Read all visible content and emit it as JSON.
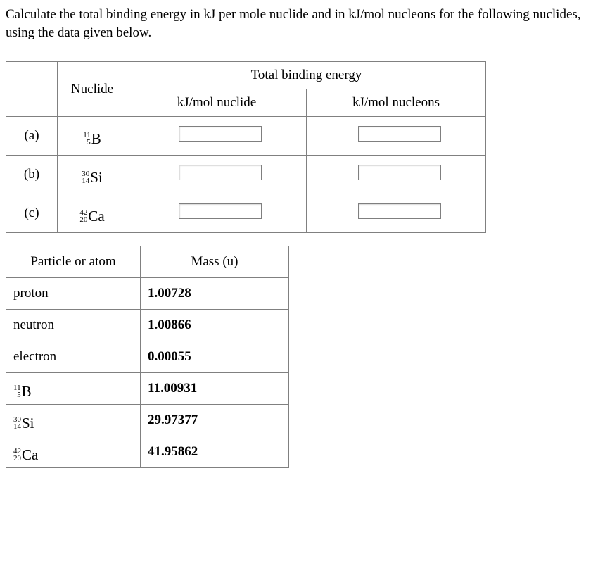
{
  "question": "Calculate the total binding energy in kJ per mole nuclide and in kJ/mol nucleons for the following nuclides, using the data given below.",
  "table1": {
    "headers": {
      "nuclide": "Nuclide",
      "tbe": "Total binding energy",
      "kj_nuclide": "kJ/mol nuclide",
      "kj_nucleons": "kJ/mol nucleons"
    },
    "rows": [
      {
        "label": "(a)",
        "mass": "11",
        "atomic": "5",
        "symbol": "B"
      },
      {
        "label": "(b)",
        "mass": "30",
        "atomic": "14",
        "symbol": "Si"
      },
      {
        "label": "(c)",
        "mass": "42",
        "atomic": "20",
        "symbol": "Ca"
      }
    ]
  },
  "table2": {
    "headers": {
      "particle": "Particle or atom",
      "mass": "Mass (u)"
    },
    "rows": [
      {
        "type": "text",
        "label": "proton",
        "mass": "1.00728"
      },
      {
        "type": "text",
        "label": "neutron",
        "mass": "1.00866"
      },
      {
        "type": "text",
        "label": "electron",
        "mass": "0.00055"
      },
      {
        "type": "iso",
        "mass_num": "11",
        "atomic": "5",
        "symbol": "B",
        "mass": "11.00931"
      },
      {
        "type": "iso",
        "mass_num": "30",
        "atomic": "14",
        "symbol": "Si",
        "mass": "29.97377"
      },
      {
        "type": "iso",
        "mass_num": "42",
        "atomic": "20",
        "symbol": "Ca",
        "mass": "41.95862"
      }
    ]
  }
}
